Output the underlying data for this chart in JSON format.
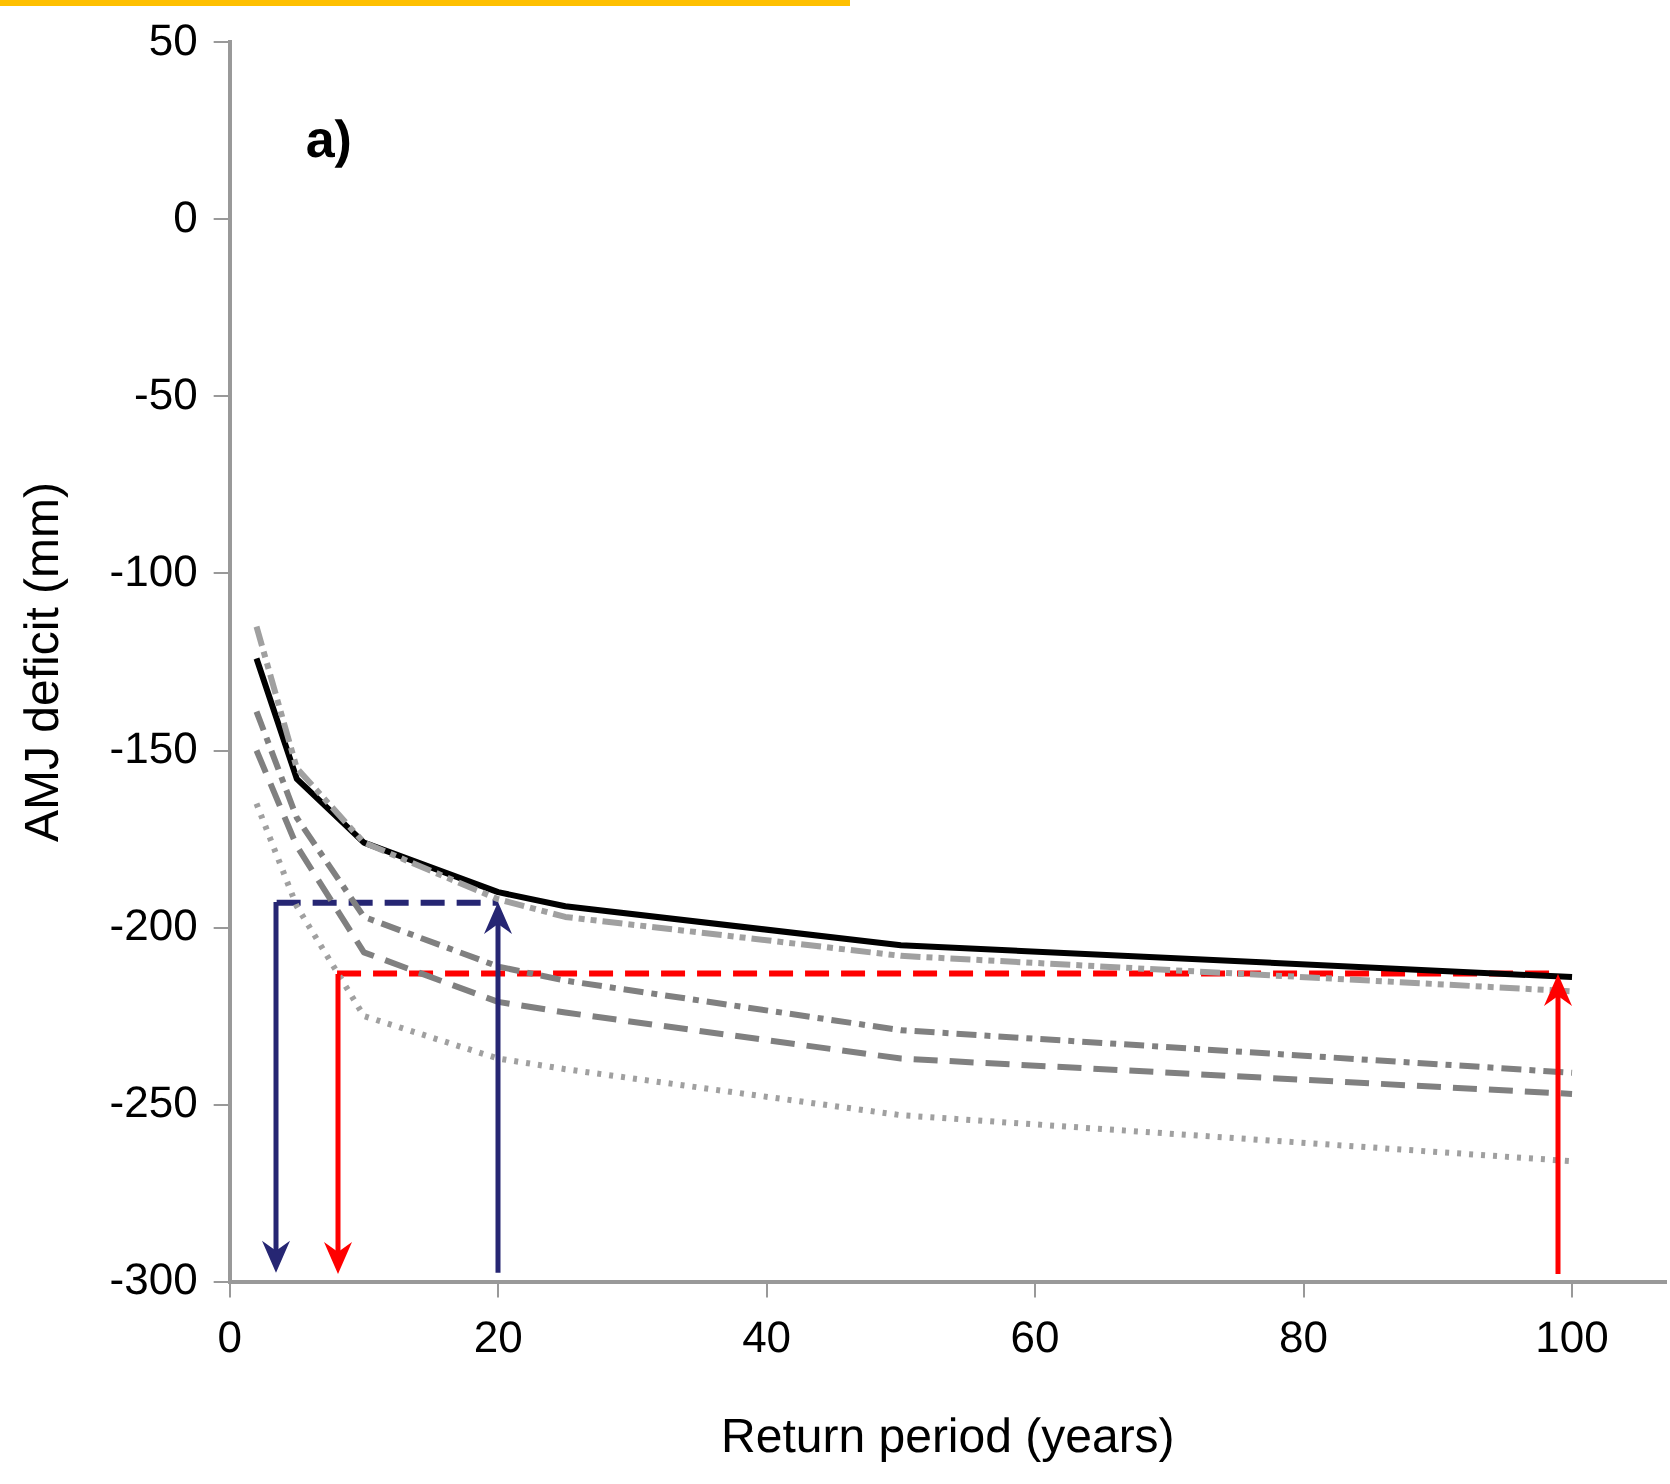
{
  "chart_data": {
    "type": "line",
    "xlabel": "Return period (years)",
    "ylabel": "AMJ deficit (mm)",
    "annotations": [
      "a)"
    ],
    "x": [
      2,
      5,
      10,
      20,
      25,
      50,
      100
    ],
    "xlim": [
      0,
      107
    ],
    "xticks": [
      0,
      20,
      40,
      60,
      80,
      100
    ],
    "ylim": [
      -300,
      50
    ],
    "yticks": [
      -300,
      -250,
      -200,
      -150,
      -100,
      -50,
      0,
      50
    ],
    "grid": false,
    "legend": false,
    "marker": "none",
    "series": [
      {
        "color": "#a0a0a0",
        "line_style": "dashdotdot",
        "values": [
          -115,
          -155,
          -176,
          -192,
          -197,
          -208,
          -218
        ]
      },
      {
        "color": "#000000",
        "line_style": "solid",
        "values": [
          -124,
          -158,
          -176,
          -190,
          -194,
          -205,
          -214
        ]
      },
      {
        "color": "#808080",
        "line_style": "dashdot",
        "values": [
          -139,
          -169,
          -197,
          -211,
          -215,
          -229,
          -241
        ]
      },
      {
        "color": "#808080",
        "line_style": "dashed",
        "values": [
          -150,
          -177,
          -207,
          -221,
          -224,
          -237,
          -247
        ]
      },
      {
        "color": "#a0a0a0",
        "line_style": "dotted",
        "values": [
          -165,
          -194,
          -225,
          -237,
          -240,
          -253,
          -266
        ]
      },
      {
        "color": "#262673",
        "line_style": "dashed",
        "x": [
          3.5,
          20
        ],
        "values": [
          -193,
          -193
        ]
      },
      {
        "color": "#ff0000",
        "line_style": "dashed",
        "x": [
          8,
          99
        ],
        "values": [
          -213,
          -213
        ]
      }
    ]
  }
}
